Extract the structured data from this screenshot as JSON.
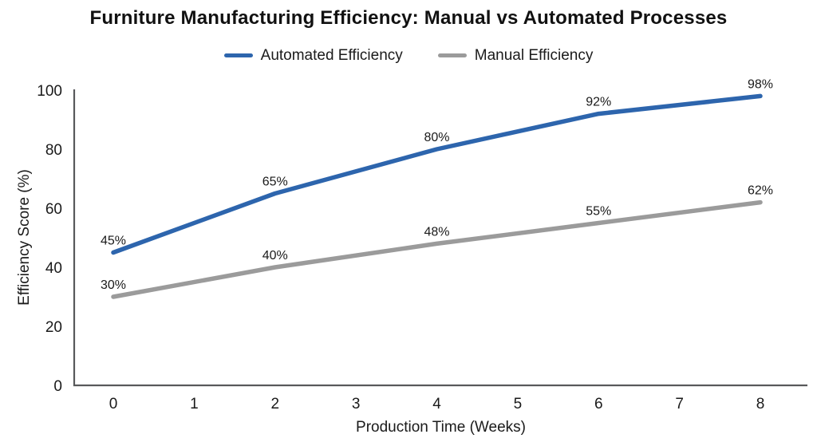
{
  "page": {
    "background": "#ffffff"
  },
  "chart_data": {
    "type": "line",
    "title": "Furniture Manufacturing Efficiency: Manual vs Automated Processes",
    "x": [
      0,
      2,
      4,
      6,
      8
    ],
    "series": [
      {
        "name": "Automated Efficiency",
        "color": "#2d65ad",
        "values": [
          45,
          65,
          80,
          92,
          98
        ],
        "point_labels": [
          "45%",
          "65%",
          "80%",
          "92%",
          "98%"
        ]
      },
      {
        "name": "Manual Efficiency",
        "color": "#9b9b9b",
        "values": [
          30,
          40,
          48,
          55,
          62
        ],
        "point_labels": [
          "30%",
          "40%",
          "48%",
          "55%",
          "62%"
        ]
      }
    ],
    "xlabel": "Production Time (Weeks)",
    "ylabel": "Efficiency Score (%)",
    "x_ticks": [
      "0",
      "1",
      "2",
      "3",
      "4",
      "5",
      "6",
      "7",
      "8"
    ],
    "x_tick_values": [
      0,
      1,
      2,
      3,
      4,
      5,
      6,
      7,
      8
    ],
    "y_ticks": [
      "0",
      "20",
      "40",
      "60",
      "80",
      "100"
    ],
    "y_tick_values": [
      0,
      20,
      40,
      60,
      80,
      100
    ],
    "xlim": [
      0,
      8
    ],
    "ylim": [
      0,
      100
    ],
    "grid": false,
    "legend_position": "top",
    "axis_color": "#58595b",
    "text_color": "#1a1a1a"
  }
}
